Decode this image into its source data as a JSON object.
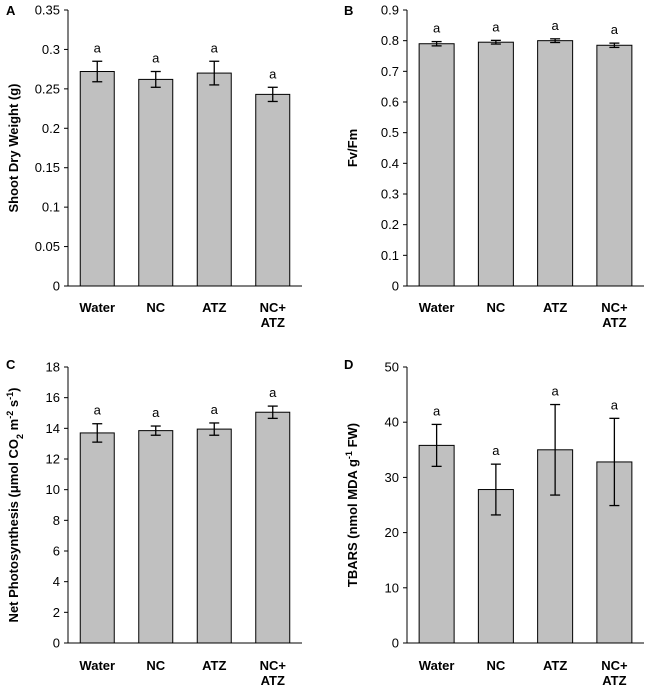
{
  "chart_data": [
    {
      "panel": "A",
      "type": "bar",
      "categories": [
        [
          "Water"
        ],
        [
          "NC"
        ],
        [
          "ATZ"
        ],
        [
          "NC+",
          "ATZ"
        ]
      ],
      "values": [
        0.272,
        0.262,
        0.27,
        0.243
      ],
      "errors": [
        0.013,
        0.01,
        0.015,
        0.009
      ],
      "labels": [
        "a",
        "a",
        "a",
        "a"
      ],
      "ylabel": "Shoot Dry Weight (g)",
      "ylim": [
        0,
        0.35
      ],
      "ticks": [
        "0",
        "0.05",
        "0.1",
        "0.15",
        "0.2",
        "0.25",
        "0.3",
        "0.35"
      ],
      "tick_values": [
        0,
        0.05,
        0.1,
        0.15,
        0.2,
        0.25,
        0.3,
        0.35
      ],
      "bar_color": "#c0c0c0"
    },
    {
      "panel": "B",
      "type": "bar",
      "categories": [
        [
          "Water"
        ],
        [
          "NC"
        ],
        [
          "ATZ"
        ],
        [
          "NC+",
          "ATZ"
        ]
      ],
      "values": [
        0.79,
        0.795,
        0.8,
        0.785
      ],
      "errors": [
        0.007,
        0.006,
        0.006,
        0.007
      ],
      "labels": [
        "a",
        "a",
        "a",
        "a"
      ],
      "ylabel": "Fv/Fm",
      "ylim": [
        0,
        0.9
      ],
      "ticks": [
        "0",
        "0.1",
        "0.2",
        "0.3",
        "0.4",
        "0.5",
        "0.6",
        "0.7",
        "0.8",
        "0.9"
      ],
      "tick_values": [
        0,
        0.1,
        0.2,
        0.3,
        0.4,
        0.5,
        0.6,
        0.7,
        0.8,
        0.9
      ],
      "bar_color": "#c0c0c0"
    },
    {
      "panel": "C",
      "type": "bar",
      "categories": [
        [
          "Water"
        ],
        [
          "NC"
        ],
        [
          "ATZ"
        ],
        [
          "NC+",
          "ATZ"
        ]
      ],
      "values": [
        13.7,
        13.85,
        13.95,
        15.05
      ],
      "errors": [
        0.6,
        0.3,
        0.4,
        0.4
      ],
      "labels": [
        "a",
        "a",
        "a",
        "a"
      ],
      "ylabel_parts": [
        {
          "t": "Net Photosynthesis (μmol CO",
          "s": ""
        },
        {
          "t": "2",
          "s": "sub"
        },
        {
          "t": " m",
          "s": ""
        },
        {
          "t": "-2",
          "s": "sup"
        },
        {
          "t": " s",
          "s": ""
        },
        {
          "t": "-1",
          "s": "sup"
        },
        {
          "t": ")",
          "s": ""
        }
      ],
      "ylim": [
        0,
        18
      ],
      "ticks": [
        "0",
        "2",
        "4",
        "6",
        "8",
        "10",
        "12",
        "14",
        "16",
        "18"
      ],
      "tick_values": [
        0,
        2,
        4,
        6,
        8,
        10,
        12,
        14,
        16,
        18
      ],
      "bar_color": "#c0c0c0"
    },
    {
      "panel": "D",
      "type": "bar",
      "categories": [
        [
          "Water"
        ],
        [
          "NC"
        ],
        [
          "ATZ"
        ],
        [
          "NC+",
          "ATZ"
        ]
      ],
      "values": [
        35.8,
        27.8,
        35.0,
        32.8
      ],
      "errors": [
        3.8,
        4.6,
        8.2,
        7.9
      ],
      "labels": [
        "a",
        "a",
        "a",
        "a"
      ],
      "ylabel_parts": [
        {
          "t": "TBARS (nmol MDA  g",
          "s": ""
        },
        {
          "t": "-1",
          "s": "sup"
        },
        {
          "t": " FW)",
          "s": ""
        }
      ],
      "ylim": [
        0,
        50
      ],
      "ticks": [
        "0",
        "10",
        "20",
        "30",
        "40",
        "50"
      ],
      "tick_values": [
        0,
        10,
        20,
        30,
        40,
        50
      ],
      "bar_color": "#c0c0c0"
    }
  ]
}
